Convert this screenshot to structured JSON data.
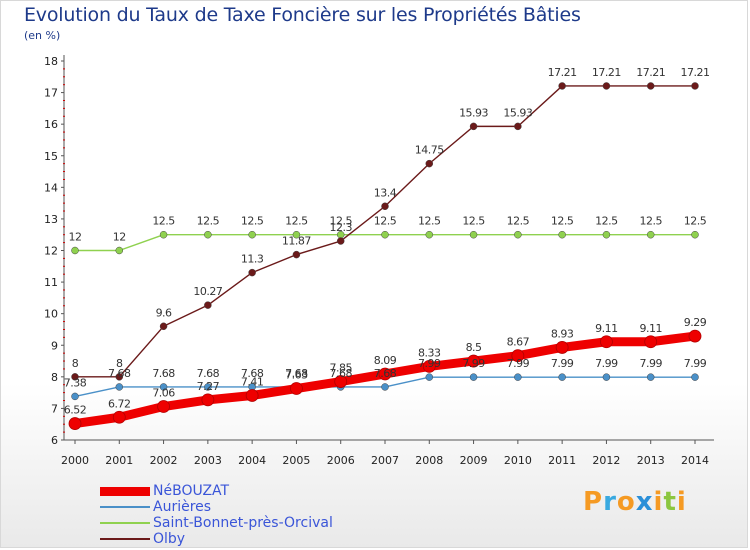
{
  "title": "Evolution du Taux de Taxe Foncière sur les Propriétés Bâties",
  "subtitle": "(en %)",
  "logo": {
    "text": "Proxiti",
    "colors": [
      "#f59a23",
      "#39a9e0",
      "#f59a23",
      "#2a8fd8",
      "#f59a23",
      "#8cc63f",
      "#f59a23"
    ]
  },
  "chart_data": {
    "type": "line",
    "title": "Evolution du Taux de Taxe Foncière sur les Propriétés Bâties",
    "ylabel": "(en %)",
    "xlabel": "",
    "x": [
      2000,
      2001,
      2002,
      2003,
      2004,
      2005,
      2006,
      2007,
      2008,
      2009,
      2010,
      2011,
      2012,
      2013,
      2014
    ],
    "ylim": [
      6,
      18
    ],
    "yticks": [
      6,
      7,
      8,
      9,
      10,
      11,
      12,
      13,
      14,
      15,
      16,
      17,
      18
    ],
    "grid": false,
    "legend_position": "bottom-left",
    "series": [
      {
        "name": "NéBOUZAT",
        "color": "#ee0000",
        "values": [
          6.52,
          6.72,
          7.06,
          7.27,
          7.41,
          7.63,
          7.85,
          8.09,
          8.33,
          8.5,
          8.67,
          8.93,
          9.11,
          9.11,
          9.29
        ],
        "labels": [
          "6.52",
          "6.72",
          "7.06",
          "7.27",
          "7.41",
          "7.63",
          "7.85",
          "8.09",
          "8.33",
          "8.5",
          "8.67",
          "8.93",
          "9.11",
          "9.11",
          "9.29"
        ]
      },
      {
        "name": "Aurières",
        "color": "#4a90c8",
        "values": [
          7.38,
          7.68,
          7.68,
          7.68,
          7.68,
          7.68,
          7.68,
          7.68,
          7.99,
          7.99,
          7.99,
          7.99,
          7.99,
          7.99,
          7.99
        ],
        "labels": [
          "7.38",
          "7.68",
          "7.68",
          "7.68",
          "7.68",
          "7.68",
          "7.68",
          "7.68",
          "7.99",
          "7.99",
          "7.99",
          "7.99",
          "7.99",
          "7.99",
          "7.99"
        ]
      },
      {
        "name": "Saint-Bonnet-près-Orcival",
        "color": "#8fd14f",
        "values": [
          12,
          12,
          12.5,
          12.5,
          12.5,
          12.5,
          12.5,
          12.5,
          12.5,
          12.5,
          12.5,
          12.5,
          12.5,
          12.5,
          12.5
        ],
        "labels": [
          "12",
          "12",
          "12.5",
          "12.5",
          "12.5",
          "12.5",
          "12.5",
          "12.5",
          "12.5",
          "12.5",
          "12.5",
          "12.5",
          "12.5",
          "12.5",
          "12.5"
        ]
      },
      {
        "name": "Olby",
        "color": "#6b1a1a",
        "values": [
          8,
          8,
          9.6,
          10.27,
          11.3,
          11.87,
          12.3,
          13.4,
          14.75,
          15.93,
          15.93,
          17.21,
          17.21,
          17.21,
          17.21
        ],
        "labels": [
          "8",
          "8",
          "9.6",
          "10.27",
          "11.3",
          "11.87",
          "12.3",
          "13.4",
          "14.75",
          "15.93",
          "15.93",
          "17.21",
          "17.21",
          "17.21",
          "17.21"
        ]
      }
    ]
  }
}
